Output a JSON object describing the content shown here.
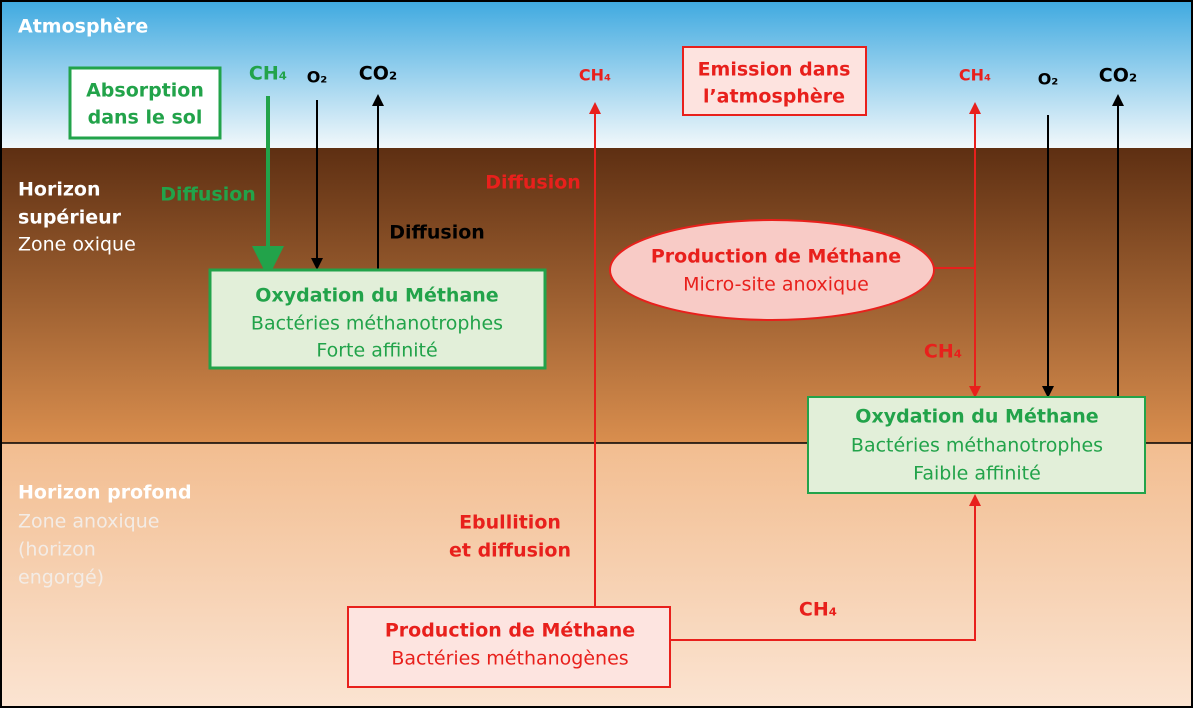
{
  "layers": {
    "atmosphere": "Atmosphère",
    "upper": {
      "title": [
        "Horizon",
        "supérieur"
      ],
      "subtitle": "Zone oxique"
    },
    "deep": {
      "title": "Horizon profond",
      "subtitle": [
        "Zone anoxique",
        "(horizon",
        "engorgé)"
      ]
    }
  },
  "boxes": {
    "absorption": [
      "Absorption",
      "dans le sol"
    ],
    "emission": [
      "Emission dans",
      "l’atmosphère"
    ],
    "oxidation_strong": {
      "title": "Oxydation du Méthane",
      "lines": [
        "Bactéries méthanotrophes",
        "Forte affinité"
      ]
    },
    "microsite": {
      "title": "Production de Méthane",
      "lines": [
        "Micro-site anoxique"
      ]
    },
    "oxidation_weak": {
      "title": "Oxydation du Méthane",
      "lines": [
        "Bactéries méthanotrophes",
        "Faible affinité"
      ]
    },
    "production_deep": {
      "title": "Production de Méthane",
      "lines": [
        "Bactéries méthanogènes"
      ]
    }
  },
  "species": {
    "left": [
      "CH₄",
      "O₂",
      "CO₂"
    ],
    "middle": "CH₄",
    "right": [
      "CH₄",
      "O₂",
      "CO₂"
    ],
    "micro_down": "CH₄",
    "deep_right": "CH₄"
  },
  "processes": {
    "green_diffusion": "Diffusion",
    "black_diffusion": "Diffusion",
    "red_diffusion": "Diffusion",
    "ebullition": [
      "Ebullition",
      "et diffusion"
    ]
  }
}
